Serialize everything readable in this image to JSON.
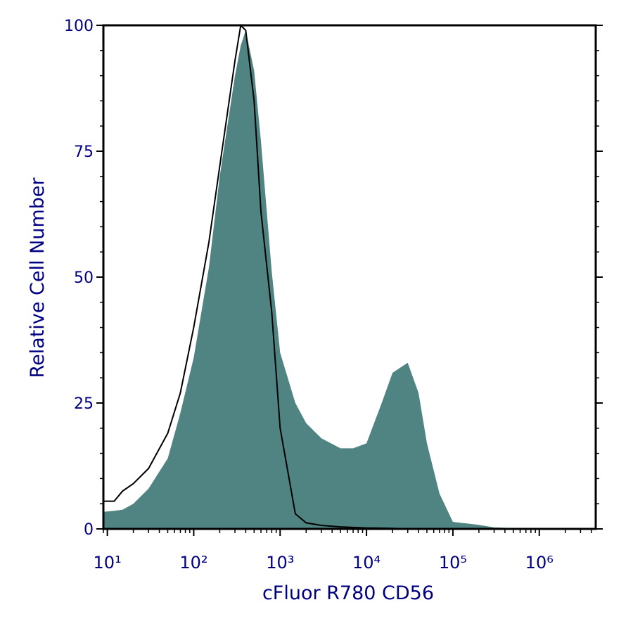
{
  "chart_data": {
    "type": "histogram-overlay",
    "xlabel": "cFluor R780 CD56",
    "ylabel": "Relative Cell Number",
    "xscale": "log",
    "xlim": [
      9,
      4500000
    ],
    "ylim": [
      0,
      100
    ],
    "xticks": [
      {
        "value": 10,
        "label": "10¹"
      },
      {
        "value": 100,
        "label": "10²"
      },
      {
        "value": 1000,
        "label": "10³"
      },
      {
        "value": 10000,
        "label": "10⁴"
      },
      {
        "value": 100000,
        "label": "10⁵"
      },
      {
        "value": 1000000,
        "label": "10⁶"
      }
    ],
    "yticks": [
      0,
      25,
      50,
      75,
      100
    ],
    "x": [
      9,
      12,
      15,
      20,
      30,
      50,
      70,
      100,
      150,
      200,
      300,
      350,
      400,
      500,
      600,
      800,
      1000,
      1500,
      2000,
      3000,
      5000,
      7000,
      10000,
      15000,
      20000,
      30000,
      40000,
      50000,
      70000,
      100000,
      200000,
      300000,
      1000000,
      4500000
    ],
    "series": [
      {
        "style": "filled",
        "color": "#508482",
        "values": [
          3.4,
          3.6,
          3.8,
          5,
          8,
          14,
          23,
          34,
          52,
          70,
          90,
          96,
          99,
          91,
          77,
          51,
          35,
          25,
          21,
          18,
          16,
          16,
          17,
          25,
          31,
          33,
          27,
          17,
          7,
          1.4,
          0.8,
          0.3,
          0,
          0
        ]
      },
      {
        "style": "line",
        "color": "#000000",
        "values": [
          5.5,
          5.5,
          7.5,
          9,
          12,
          19,
          27,
          40,
          57,
          72,
          93,
          100,
          99,
          85,
          63,
          43,
          20,
          3,
          1.2,
          0.7,
          0.4,
          0.3,
          0.2,
          0.15,
          0.1,
          0,
          0,
          0,
          0,
          0,
          0,
          0,
          0,
          0
        ]
      }
    ]
  }
}
